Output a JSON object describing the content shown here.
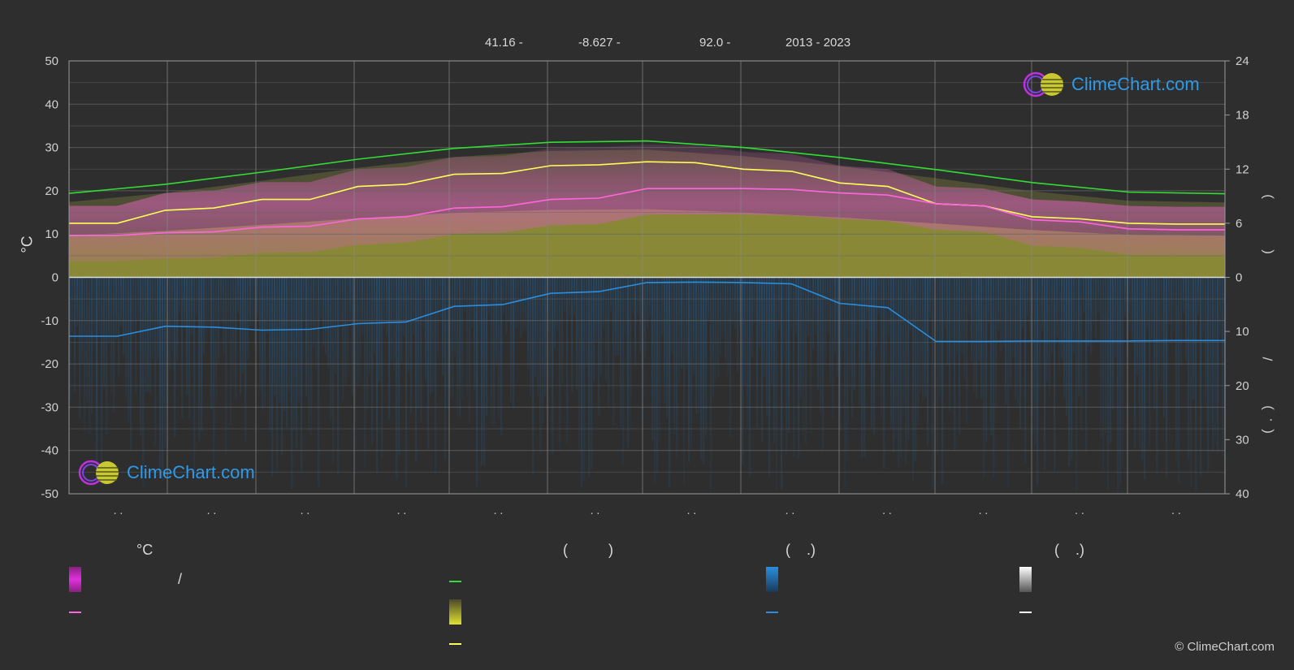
{
  "header": {
    "lat": "41.16 -",
    "lon": "-8.627 -",
    "elev": "92.0 -",
    "years": "2013 - 2023"
  },
  "logo": {
    "text": "ClimeChart.com"
  },
  "copyright": "© ClimeChart.com",
  "legend": {
    "temp_unit": "°C",
    "col2_paren": "(          )",
    "col3_paren": "(    .)",
    "col4_paren": "(    .)",
    "slash": "/"
  },
  "colors": {
    "background": "#2e2e2e",
    "max_temp": "#ffff55",
    "mean_temp": "#ff66dd",
    "daylight": "#33dd33",
    "precip": "#2a8ee0",
    "sunshine_fill": "#a7a73a",
    "temp_band": "#d060b0",
    "grid": "#666666",
    "axis_text": "#d0d0d0"
  },
  "chart_data": {
    "type": "line",
    "title": "",
    "x_tick_labels": [
      ". .",
      ". .",
      ". .",
      ". .",
      ". .",
      ". .",
      ". .",
      ". .",
      ". .",
      ". .",
      ". .",
      ". ."
    ],
    "y_left": {
      "label": "°C",
      "range": [
        -50,
        50
      ],
      "ticks": [
        "50",
        "40",
        "30",
        "20",
        "10",
        "0",
        "-10",
        "-20",
        "-30",
        "-40",
        "-50"
      ]
    },
    "y_right_top": {
      "range": [
        0,
        24
      ],
      "ticks": [
        "24",
        "18",
        "12",
        "6",
        "0"
      ],
      "label_fragments": [
        ")",
        "("
      ]
    },
    "y_right_bottom": {
      "range": [
        0,
        40
      ],
      "ticks": [
        "10",
        "20",
        "30",
        "40"
      ],
      "label_fragments": [
        "/",
        ")",
        "·",
        "("
      ]
    },
    "series": [
      {
        "key": "daylight",
        "axis": "left",
        "x": [
          0,
          1,
          2,
          3,
          4,
          5,
          6,
          7,
          8,
          9,
          10,
          11,
          12
        ],
        "values": [
          19.4,
          21.5,
          24.3,
          27.3,
          29.8,
          31.2,
          31.5,
          30.0,
          27.7,
          24.9,
          21.9,
          19.7,
          19.3
        ]
      },
      {
        "key": "max_temp",
        "axis": "left",
        "x": [
          0,
          0.5,
          1,
          1.5,
          2,
          2.5,
          3,
          3.5,
          4,
          4.5,
          5,
          5.5,
          6,
          6.5,
          7,
          7.5,
          8,
          8.5,
          9,
          9.5,
          10,
          10.5,
          11,
          11.5,
          12
        ],
        "values": [
          12.5,
          12.5,
          15.5,
          16.0,
          18.0,
          18.0,
          21.0,
          21.5,
          23.8,
          24.0,
          25.8,
          26.0,
          26.7,
          26.5,
          25.0,
          24.5,
          21.8,
          21.0,
          17.0,
          16.5,
          14.0,
          13.5,
          12.5,
          12.3,
          12.3
        ]
      },
      {
        "key": "mean_temp",
        "axis": "left",
        "x": [
          0,
          0.5,
          1,
          1.5,
          2,
          2.5,
          3,
          3.5,
          4,
          4.5,
          5,
          5.5,
          6,
          6.5,
          7,
          7.5,
          8,
          8.5,
          9,
          9.5,
          10,
          10.5,
          11,
          11.5,
          12
        ],
        "values": [
          9.7,
          9.7,
          10.3,
          10.5,
          11.6,
          11.8,
          13.5,
          14.0,
          16.0,
          16.3,
          18.0,
          18.3,
          20.5,
          20.5,
          20.5,
          20.3,
          19.5,
          19.0,
          17.0,
          16.5,
          13.3,
          12.8,
          11.2,
          11.0,
          11.0
        ]
      },
      {
        "key": "precip_mean",
        "axis": "left",
        "x": [
          0,
          0.5,
          1,
          1.5,
          2,
          2.5,
          3,
          3.5,
          4,
          4.5,
          5,
          5.5,
          6,
          6.5,
          7,
          7.5,
          8,
          8.5,
          9,
          9.5,
          10,
          10.5,
          11,
          11.5,
          12
        ],
        "values": [
          -13.6,
          -13.6,
          -11.3,
          -11.5,
          -12.2,
          -12.0,
          -10.7,
          -10.3,
          -6.7,
          -6.3,
          -3.7,
          -3.3,
          -1.2,
          -1.1,
          -1.2,
          -1.5,
          -6.0,
          -7.0,
          -14.8,
          -14.8,
          -14.7,
          -14.7,
          -14.7,
          -14.6,
          -14.6
        ]
      }
    ]
  }
}
